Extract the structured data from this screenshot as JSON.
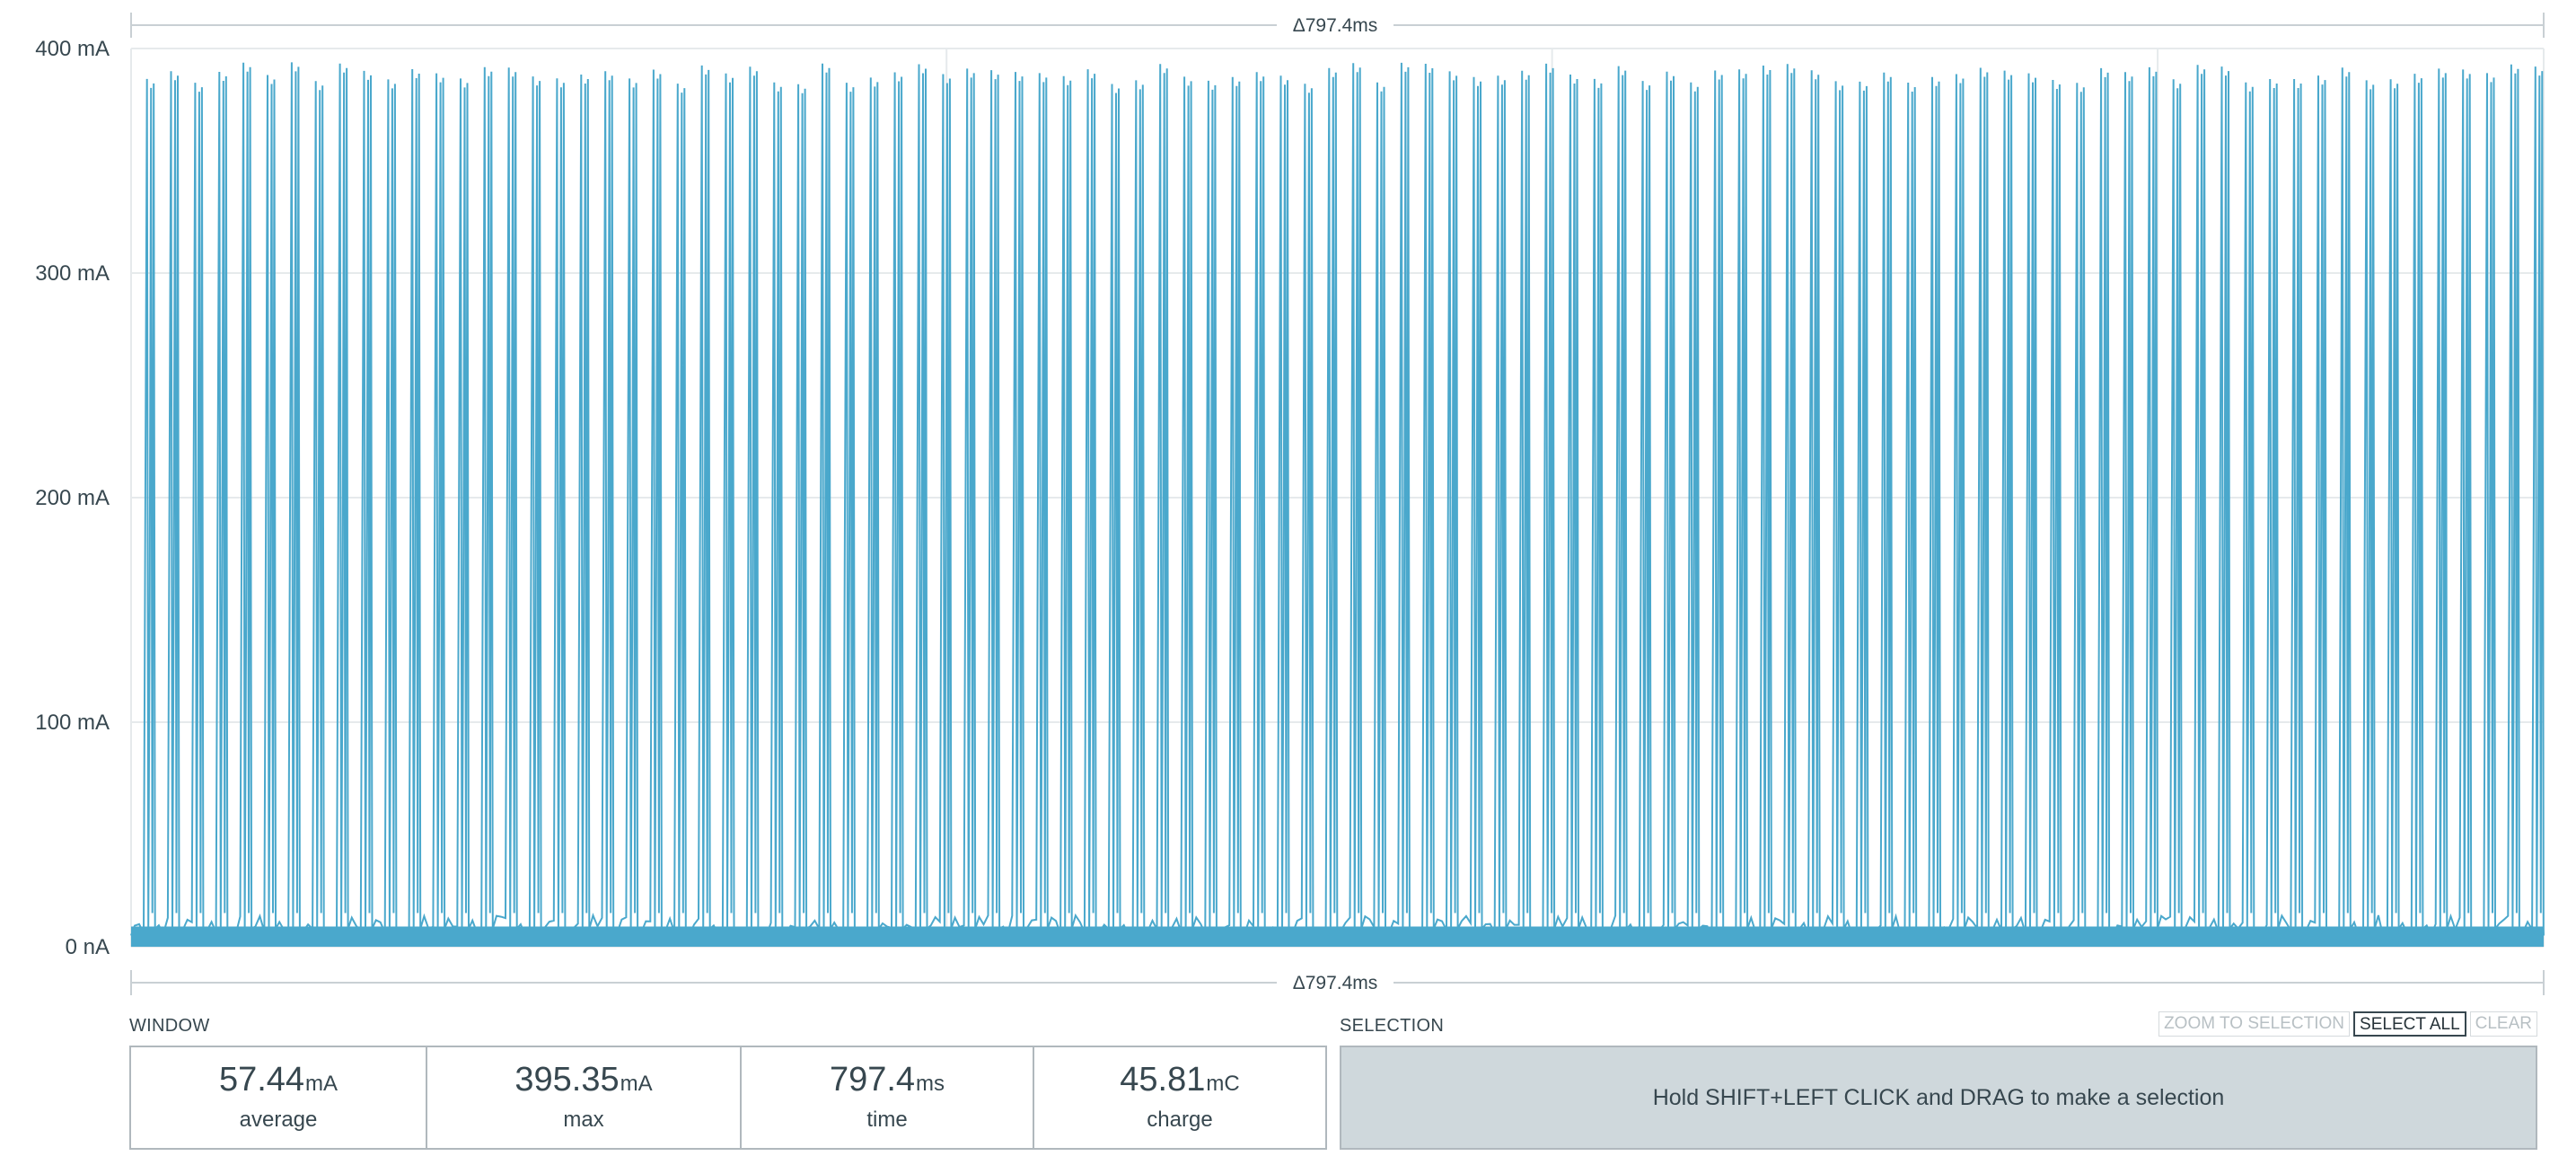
{
  "chart": {
    "top_delta_label": "Δ797.4ms",
    "bottom_delta_label": "Δ797.4ms",
    "series_color": "#4aa8cc"
  },
  "chart_data": {
    "type": "line",
    "ylabel": "",
    "xlabel": "",
    "y_tick_labels": [
      "400 mA",
      "300 mA",
      "200 mA",
      "100 mA",
      "0 nA"
    ],
    "y_tick_values_mA": [
      400,
      300,
      200,
      100,
      0
    ],
    "ylim_mA": [
      0,
      400
    ],
    "x_range_ms": [
      0,
      797.4
    ],
    "grid": true,
    "series": [
      {
        "pulse_count": 100,
        "peak_mA_approx": 390,
        "baseline_mA_approx": 5,
        "max_mA": 395.35,
        "average_mA": 57.44
      }
    ]
  },
  "window": {
    "title": "WINDOW",
    "stats": [
      {
        "value": "57.44",
        "unit": "mA",
        "label": "average"
      },
      {
        "value": "395.35",
        "unit": "mA",
        "label": "max"
      },
      {
        "value": "797.4",
        "unit": "ms",
        "label": "time"
      },
      {
        "value": "45.81",
        "unit": "mC",
        "label": "charge"
      }
    ]
  },
  "selection": {
    "title": "SELECTION",
    "hint": "Hold SHIFT+LEFT CLICK and DRAG to make a selection",
    "buttons": {
      "zoom": "ZOOM TO SELECTION",
      "select_all": "SELECT ALL",
      "clear": "CLEAR"
    }
  }
}
